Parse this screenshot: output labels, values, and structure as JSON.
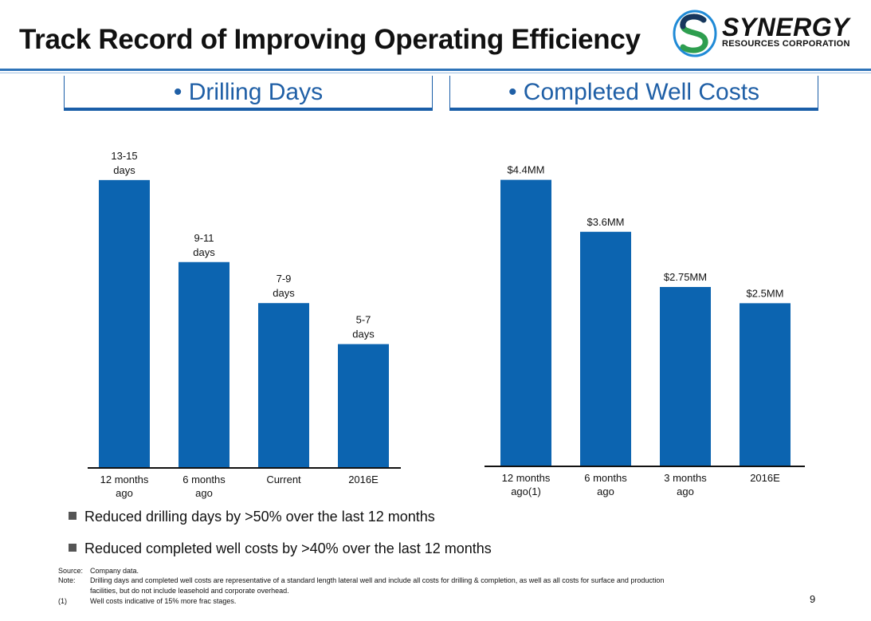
{
  "title": "Track Record of Improving Operating Efficiency",
  "logo": {
    "name": "SYNERGY",
    "subtitle": "RESOURCES CORPORATION",
    "colors": {
      "navy": "#17365d",
      "green": "#2e9e4f",
      "blue": "#1f8ad6"
    }
  },
  "panel_headers": {
    "left": "•   Drilling Days",
    "right": "•   Completed Well Costs"
  },
  "chart_data": [
    {
      "type": "bar",
      "title": "Drilling Days",
      "categories": [
        "12 months ago",
        "6 months ago",
        "Current",
        "2016E"
      ],
      "category_label_lines": [
        [
          "12 months",
          "ago"
        ],
        [
          "6 months",
          "ago"
        ],
        [
          "Current"
        ],
        [
          "2016E"
        ]
      ],
      "values": [
        14,
        10,
        8,
        6
      ],
      "data_labels": [
        [
          "13-15",
          "days"
        ],
        [
          "9-11",
          "days"
        ],
        [
          "7-9",
          "days"
        ],
        [
          "5-7",
          "days"
        ]
      ],
      "ylim": [
        0,
        14.5
      ],
      "grid": false,
      "bar_color": "#0c64b0"
    },
    {
      "type": "bar",
      "title": "Completed Well Costs",
      "categories": [
        "12 months ago(1)",
        "6 months ago",
        "3 months ago",
        "2016E"
      ],
      "category_label_lines": [
        [
          "12 months",
          "ago(1)"
        ],
        [
          "6 months",
          "ago"
        ],
        [
          "3 months",
          "ago"
        ],
        [
          "2016E"
        ]
      ],
      "values": [
        4.4,
        3.6,
        2.75,
        2.5
      ],
      "data_labels": [
        [
          "$4.4MM"
        ],
        [
          "$3.6MM"
        ],
        [
          "$2.75MM"
        ],
        [
          "$2.5MM"
        ]
      ],
      "unit": "$MM",
      "ylim": [
        0,
        5.5
      ],
      "grid": false,
      "bar_color": "#0c64b0"
    }
  ],
  "bullets": [
    "Reduced drilling days by >50% over the last 12 months",
    "Reduced completed well costs by >40% over the last 12 months"
  ],
  "footnotes": [
    {
      "key": "Source:",
      "text": "Company data."
    },
    {
      "key": "Note:",
      "text": "Drilling days and completed well costs are representative of a standard length lateral well and include all costs for drilling & completion, as well as all costs for surface and production"
    },
    {
      "key": "",
      "text": "facilities, but do not include leasehold and corporate overhead."
    },
    {
      "key": "(1)",
      "text": "Well costs indicative of 15% more frac stages."
    }
  ],
  "page_number": "9"
}
